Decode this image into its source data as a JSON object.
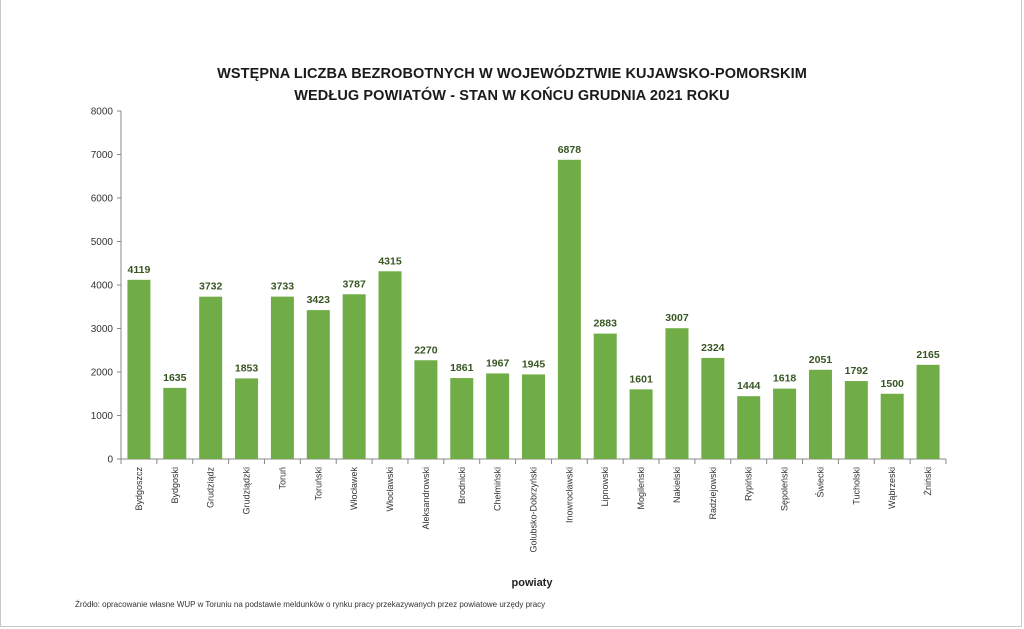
{
  "chart_data": {
    "type": "bar",
    "title_lines": [
      "WSTĘPNA LICZBA BEZROBOTNYCH W WOJEWÓDZTWIE KUJAWSKO-POMORSKIM",
      "WEDŁUG POWIATÓW - STAN W KOŃCU GRUDNIA 2021 ROKU"
    ],
    "xlabel": "powiaty",
    "ylabel": "",
    "ylim": [
      0,
      8000
    ],
    "yticks": [
      "0",
      "1000",
      "2000",
      "3000",
      "4000",
      "5000",
      "6000",
      "7000",
      "8000"
    ],
    "categories": [
      "Bydgoszcz",
      "Bydgoski",
      "Grudziądz",
      "Grudziądzki",
      "Toruń",
      "Toruński",
      "Włocławek",
      "Włocławski",
      "Aleksandrowski",
      "Brodnicki",
      "Chełmiński",
      "Golubsko-Dobrzyński",
      "Inowrocławski",
      "Lipnowski",
      "Mogileński",
      "Nakielski",
      "Radziejowski",
      "Rypiński",
      "Sępoleński",
      "Świecki",
      "Tucholski",
      "Wąbrzeski",
      "Żniński"
    ],
    "values": [
      4119,
      1635,
      3732,
      1853,
      3733,
      3423,
      3787,
      4315,
      2270,
      1861,
      1967,
      1945,
      6878,
      2883,
      1601,
      3007,
      2324,
      1444,
      1618,
      2051,
      1792,
      1500,
      2165
    ],
    "bar_color": "#70ad47",
    "label_color": "#375623",
    "grid": false,
    "legend": "none"
  },
  "source_note": "Źródło: opracowanie własne WUP w Toruniu na podstawie meldunków o rynku pracy przekazywanych przez powiatowe urzędy pracy"
}
